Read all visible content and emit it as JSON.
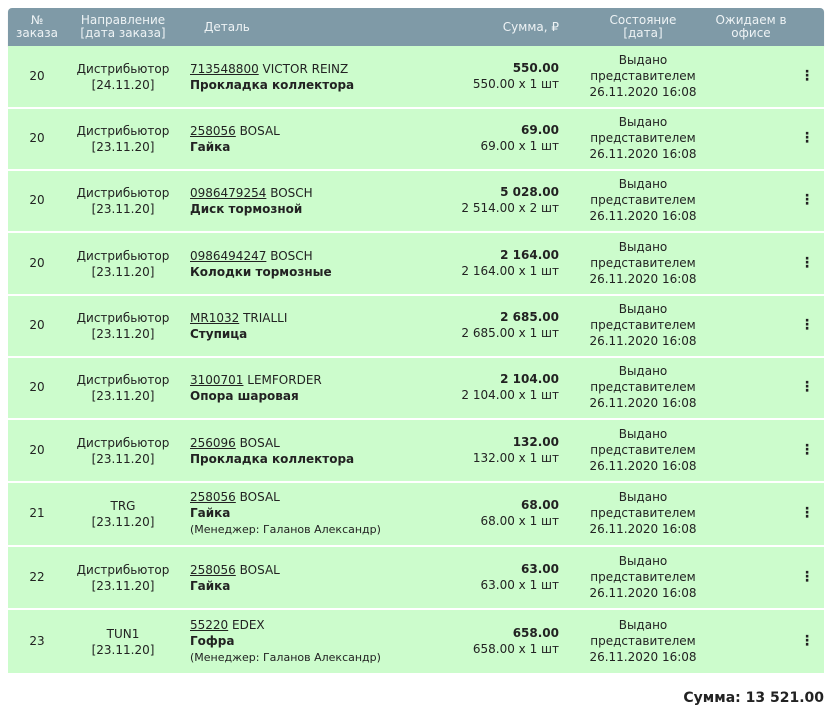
{
  "header": {
    "num": "№\nзаказа",
    "direction": "Направление\n[дата заказа]",
    "detail": "Деталь",
    "sum": "Сумма, ₽",
    "state": "Состояние\n[дата]",
    "waiting": "Ожидаем в\nофисе"
  },
  "rows": [
    {
      "num": "20",
      "dir": "Дистрибьютор",
      "date": "[24.11.20]",
      "article": "713548800",
      "brand": "VICTOR REINZ",
      "name": "Прокладка коллектора",
      "manager": "",
      "total": "550.00",
      "calc": "550.00 х 1 шт",
      "state1": "Выдано",
      "state2": "представителем",
      "state3": "26.11.2020 16:08"
    },
    {
      "num": "20",
      "dir": "Дистрибьютор",
      "date": "[23.11.20]",
      "article": "258056",
      "brand": "BOSAL",
      "name": "Гайка",
      "manager": "",
      "total": "69.00",
      "calc": "69.00 х 1 шт",
      "state1": "Выдано",
      "state2": "представителем",
      "state3": "26.11.2020 16:08"
    },
    {
      "num": "20",
      "dir": "Дистрибьютор",
      "date": "[23.11.20]",
      "article": "0986479254",
      "brand": "BOSCH",
      "name": "Диск тормозной",
      "manager": "",
      "total": "5 028.00",
      "calc": "2 514.00 х 2 шт",
      "state1": "Выдано",
      "state2": "представителем",
      "state3": "26.11.2020 16:08"
    },
    {
      "num": "20",
      "dir": "Дистрибьютор",
      "date": "[23.11.20]",
      "article": "0986494247",
      "brand": "BOSCH",
      "name": "Колодки тормозные",
      "manager": "",
      "total": "2 164.00",
      "calc": "2 164.00 х 1 шт",
      "state1": "Выдано",
      "state2": "представителем",
      "state3": "26.11.2020 16:08"
    },
    {
      "num": "20",
      "dir": "Дистрибьютор",
      "date": "[23.11.20]",
      "article": "MR1032",
      "brand": "TRIALLI",
      "name": "Ступица",
      "manager": "",
      "total": "2 685.00",
      "calc": "2 685.00 х 1 шт",
      "state1": "Выдано",
      "state2": "представителем",
      "state3": "26.11.2020 16:08"
    },
    {
      "num": "20",
      "dir": "Дистрибьютор",
      "date": "[23.11.20]",
      "article": "3100701",
      "brand": "LEMFORDER",
      "name": "Опора шаровая",
      "manager": "",
      "total": "2 104.00",
      "calc": "2 104.00 х 1 шт",
      "state1": "Выдано",
      "state2": "представителем",
      "state3": "26.11.2020 16:08"
    },
    {
      "num": "20",
      "dir": "Дистрибьютор",
      "date": "[23.11.20]",
      "article": "256096",
      "brand": "BOSAL",
      "name": "Прокладка коллектора",
      "manager": "",
      "total": "132.00",
      "calc": "132.00 х 1 шт",
      "state1": "Выдано",
      "state2": "представителем",
      "state3": "26.11.2020 16:08"
    },
    {
      "num": "21",
      "dir": "TRG",
      "date": "[23.11.20]",
      "article": "258056",
      "brand": "BOSAL",
      "name": "Гайка",
      "manager": "(Менеджер: Галанов Александр)",
      "total": "68.00",
      "calc": "68.00 х 1 шт",
      "state1": "Выдано",
      "state2": "представителем",
      "state3": "26.11.2020 16:08"
    },
    {
      "num": "22",
      "dir": "Дистрибьютор",
      "date": "[23.11.20]",
      "article": "258056",
      "brand": "BOSAL",
      "name": "Гайка",
      "manager": "",
      "total": "63.00",
      "calc": "63.00 х 1 шт",
      "state1": "Выдано",
      "state2": "представителем",
      "state3": "26.11.2020 16:08"
    },
    {
      "num": "23",
      "dir": "TUN1",
      "date": "[23.11.20]",
      "article": "55220",
      "brand": "EDEX",
      "name": "Гофра",
      "manager": "(Менеджер: Галанов Александр)",
      "total": "658.00",
      "calc": "658.00 х 1 шт",
      "state1": "Выдано",
      "state2": "представителем",
      "state3": "26.11.2020 16:08"
    }
  ],
  "menu_icon": "⋮",
  "footer": {
    "total": "Сумма: 13 521.00"
  }
}
